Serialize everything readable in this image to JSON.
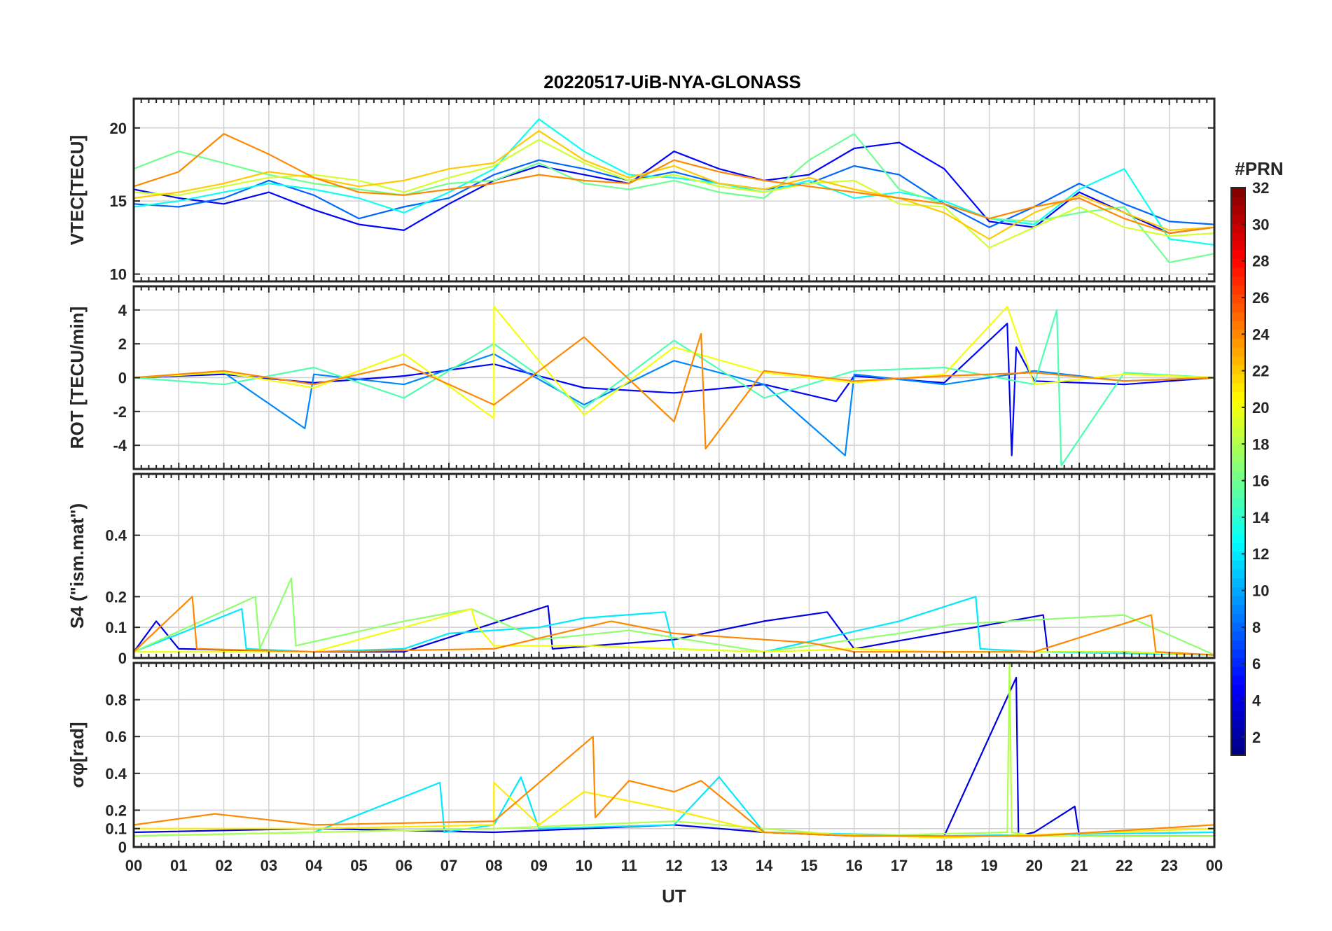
{
  "title": "20220517-UiB-NYA-GLONASS",
  "colors": {
    "grid": "#d0d0d0",
    "axis": "#262626",
    "background": "#ffffff"
  },
  "chart_data": {
    "type": "line",
    "title": "20220517-UiB-NYA-GLONASS",
    "xlabel": "UT",
    "xlim": [
      0,
      24
    ],
    "x_tick_labels": [
      "00",
      "01",
      "02",
      "03",
      "04",
      "05",
      "06",
      "07",
      "08",
      "09",
      "10",
      "11",
      "12",
      "13",
      "14",
      "15",
      "16",
      "17",
      "18",
      "19",
      "20",
      "21",
      "22",
      "23",
      "00"
    ],
    "grid": true,
    "colorbar": {
      "title": "#PRN",
      "range": [
        1,
        32
      ],
      "tick_labels": [
        "2",
        "4",
        "6",
        "8",
        "10",
        "12",
        "14",
        "16",
        "18",
        "20",
        "22",
        "24",
        "26",
        "28",
        "30",
        "32"
      ],
      "colormap": "jet",
      "placement": "right"
    },
    "panels": [
      {
        "name": "vtec",
        "ylabel": "VTEC[TECU]",
        "ylim": [
          9.5,
          22
        ],
        "y_ticks": [
          10,
          15,
          20
        ],
        "y_tick_labels": [
          "10",
          "15",
          "20"
        ],
        "series": [
          {
            "prn": 5,
            "x": [
              0,
              1,
              2,
              3,
              4,
              5,
              6,
              7,
              8,
              9,
              10,
              11,
              12,
              13,
              14,
              15,
              16,
              17,
              18,
              19,
              20,
              21,
              22,
              23,
              24
            ],
            "y": [
              15.8,
              15.2,
              14.8,
              15.6,
              14.4,
              13.4,
              13.0,
              14.8,
              16.4,
              17.4,
              16.8,
              16.2,
              18.4,
              17.2,
              16.4,
              16.8,
              18.6,
              19.0,
              17.2,
              13.6,
              13.2,
              15.6,
              14.2,
              12.8,
              13.2
            ]
          },
          {
            "prn": 8,
            "x": [
              0,
              1,
              2,
              3,
              4,
              5,
              6,
              7,
              8,
              9,
              10,
              11,
              12,
              13,
              14,
              15,
              16,
              17,
              18,
              19,
              20,
              21,
              22,
              23,
              24
            ],
            "y": [
              14.8,
              14.6,
              15.2,
              16.4,
              15.4,
              13.8,
              14.6,
              15.2,
              16.8,
              17.8,
              17.2,
              16.4,
              17.0,
              16.2,
              15.8,
              16.2,
              17.4,
              16.8,
              14.8,
              13.2,
              14.6,
              16.2,
              14.8,
              13.6,
              13.4
            ]
          },
          {
            "prn": 13,
            "x": [
              0,
              1,
              2,
              3,
              4,
              5,
              6,
              7,
              8,
              9,
              10,
              11,
              12,
              13,
              14,
              15,
              16,
              17,
              18,
              19,
              20,
              21,
              22,
              23,
              24
            ],
            "y": [
              14.6,
              15.0,
              15.6,
              16.2,
              15.8,
              15.2,
              14.2,
              15.6,
              17.2,
              20.6,
              18.4,
              16.8,
              16.6,
              16.2,
              15.6,
              16.4,
              15.2,
              15.6,
              15.0,
              13.8,
              13.4,
              15.8,
              17.2,
              12.4,
              12.0
            ]
          },
          {
            "prn": 16,
            "x": [
              0,
              1,
              2,
              3,
              4,
              5,
              6,
              7,
              8,
              9,
              10,
              11,
              12,
              13,
              14,
              15,
              16,
              17,
              18,
              19,
              20,
              21,
              22,
              23,
              24
            ],
            "y": [
              17.2,
              18.4,
              17.6,
              16.8,
              16.2,
              15.8,
              15.4,
              16.2,
              16.4,
              17.6,
              16.2,
              15.8,
              16.4,
              15.6,
              15.2,
              17.8,
              19.6,
              15.8,
              14.8,
              13.8,
              13.6,
              14.2,
              14.6,
              10.8,
              11.4
            ]
          },
          {
            "prn": 19,
            "x": [
              0,
              1,
              2,
              3,
              4,
              5,
              6,
              7,
              8,
              9,
              10,
              11,
              12,
              13,
              14,
              15,
              16,
              17,
              18,
              19,
              20,
              21,
              22,
              23,
              24
            ],
            "y": [
              15.6,
              15.4,
              16.0,
              16.6,
              16.8,
              16.4,
              15.6,
              16.6,
              17.4,
              19.2,
              17.6,
              16.4,
              16.8,
              16.0,
              15.6,
              16.2,
              16.4,
              14.8,
              14.6,
              11.8,
              13.2,
              14.6,
              13.2,
              12.6,
              12.8
            ]
          },
          {
            "prn": 22,
            "x": [
              0,
              1,
              2,
              3,
              4,
              5,
              6,
              7,
              8,
              9,
              10,
              11,
              12,
              13,
              14,
              15,
              16,
              17,
              18,
              19,
              20,
              21,
              22,
              23,
              24
            ],
            "y": [
              15.2,
              15.6,
              16.2,
              17.0,
              16.6,
              16.0,
              16.4,
              17.2,
              17.6,
              19.8,
              17.8,
              16.6,
              17.4,
              16.2,
              15.8,
              16.6,
              15.8,
              15.2,
              14.2,
              12.4,
              14.2,
              15.4,
              14.2,
              13.0,
              13.2
            ]
          },
          {
            "prn": 24,
            "x": [
              0,
              1,
              2,
              3,
              4,
              5,
              6,
              7,
              8,
              9,
              10,
              11,
              12,
              13,
              14,
              15,
              16,
              17,
              18,
              19,
              20,
              21,
              22,
              23,
              24
            ],
            "y": [
              16.0,
              17.0,
              19.6,
              18.2,
              16.6,
              15.6,
              15.4,
              15.8,
              16.2,
              16.8,
              16.4,
              16.2,
              17.8,
              17.0,
              16.4,
              16.0,
              15.6,
              15.2,
              14.8,
              13.8,
              14.6,
              15.2,
              13.8,
              12.8,
              13.2
            ]
          }
        ]
      },
      {
        "name": "rot",
        "ylabel": "ROT [TECU/min]",
        "ylim": [
          -5.4,
          5.4
        ],
        "y_ticks": [
          -4,
          -2,
          0,
          2,
          4
        ],
        "y_tick_labels": [
          "-4",
          "-2",
          "0",
          "2",
          "4"
        ],
        "series": [
          {
            "prn": 5,
            "x": [
              0,
              2,
              4,
              6,
              8,
              10,
              12,
              14,
              15.6,
              16,
              18,
              19.4,
              19.5,
              19.6,
              20,
              22,
              24
            ],
            "y": [
              0,
              0.2,
              -0.3,
              0.1,
              0.8,
              -0.6,
              -0.9,
              -0.4,
              -1.4,
              0.1,
              -0.3,
              3.2,
              -4.6,
              1.8,
              -0.2,
              -0.4,
              0
            ]
          },
          {
            "prn": 9,
            "x": [
              0,
              2,
              3.8,
              4,
              6,
              8,
              10,
              12,
              14,
              15.8,
              16,
              18,
              20,
              22,
              24
            ],
            "y": [
              0,
              0.3,
              -3.0,
              0.2,
              -0.4,
              1.4,
              -1.6,
              1.0,
              -0.4,
              -4.6,
              0.2,
              -0.4,
              0.4,
              -0.2,
              0
            ]
          },
          {
            "prn": 15,
            "x": [
              0,
              2,
              4,
              6,
              8,
              10,
              12,
              14,
              16,
              18,
              20,
              20.5,
              20.6,
              22,
              24
            ],
            "y": [
              0,
              -0.4,
              0.6,
              -1.2,
              2.0,
              -1.8,
              2.2,
              -1.2,
              0.4,
              0.6,
              -0.4,
              4.0,
              -5.2,
              0.3,
              0
            ]
          },
          {
            "prn": 20,
            "x": [
              0,
              2,
              4,
              6,
              8,
              8.0,
              10,
              12,
              14,
              16,
              18,
              19.4,
              20,
              22,
              24
            ],
            "y": [
              0,
              0.3,
              -0.6,
              1.4,
              -2.4,
              4.2,
              -2.2,
              1.8,
              0.3,
              -0.3,
              0.2,
              4.2,
              -0.4,
              0.2,
              0
            ]
          },
          {
            "prn": 24,
            "x": [
              0,
              2,
              4,
              6,
              8,
              10,
              12,
              12.6,
              12.7,
              14,
              16,
              18,
              20,
              22,
              24
            ],
            "y": [
              0,
              0.4,
              -0.4,
              0.8,
              -1.6,
              2.4,
              -2.6,
              2.6,
              -4.2,
              0.4,
              -0.2,
              0.1,
              0.3,
              -0.2,
              0
            ]
          }
        ]
      },
      {
        "name": "s4",
        "ylabel": "S4 (\"ism.mat\")",
        "ylim": [
          0,
          0.6
        ],
        "y_ticks": [
          0,
          0.1,
          0.2,
          0.4
        ],
        "y_tick_labels": [
          "0",
          "0.1",
          "0.2",
          "0.4"
        ],
        "series": [
          {
            "prn": 4,
            "x": [
              0,
              0.5,
              1,
              4,
              6,
              9.2,
              9.3,
              12,
              14,
              15.4,
              16,
              20.2,
              20.3,
              22,
              24
            ],
            "y": [
              0.02,
              0.12,
              0.03,
              0.02,
              0.02,
              0.17,
              0.03,
              0.06,
              0.12,
              0.15,
              0.03,
              0.14,
              0.02,
              0.02,
              0.01
            ]
          },
          {
            "prn": 12,
            "x": [
              0,
              2.4,
              2.5,
              4,
              6,
              7,
              9,
              10,
              11.8,
              12,
              14,
              17,
              18.7,
              18.8,
              20,
              24
            ],
            "y": [
              0.02,
              0.16,
              0.03,
              0.02,
              0.03,
              0.08,
              0.1,
              0.13,
              0.15,
              0.03,
              0.02,
              0.12,
              0.2,
              0.03,
              0.02,
              0.01
            ]
          },
          {
            "prn": 17,
            "x": [
              0,
              2.7,
              2.8,
              3.5,
              3.6,
              6,
              7.5,
              9,
              11,
              14,
              17,
              18.2,
              22,
              24
            ],
            "y": [
              0.02,
              0.2,
              0.03,
              0.26,
              0.04,
              0.12,
              0.16,
              0.06,
              0.09,
              0.02,
              0.08,
              0.11,
              0.14,
              0.01
            ]
          },
          {
            "prn": 20,
            "x": [
              0,
              4,
              7.5,
              7.6,
              8,
              10,
              12,
              14,
              16,
              18,
              20,
              22,
              24
            ],
            "y": [
              0.02,
              0.02,
              0.16,
              0.11,
              0.04,
              0.04,
              0.03,
              0.02,
              0.03,
              0.02,
              0.02,
              0.02,
              0.01
            ]
          },
          {
            "prn": 24,
            "x": [
              0,
              1.3,
              1.4,
              4,
              8,
              10.6,
              12,
              15,
              16,
              20,
              22.6,
              22.7,
              24
            ],
            "y": [
              0.02,
              0.2,
              0.03,
              0.02,
              0.03,
              0.12,
              0.08,
              0.05,
              0.02,
              0.02,
              0.14,
              0.02,
              0.01
            ]
          }
        ]
      },
      {
        "name": "sigma_phi",
        "ylabel": "σφ[rad]",
        "ylim": [
          0,
          1.0
        ],
        "y_ticks": [
          0,
          0.1,
          0.2,
          0.4,
          0.6,
          0.8
        ],
        "y_tick_labels": [
          "0",
          "0.1",
          "0.2",
          "0.4",
          "0.6",
          "0.8"
        ],
        "series": [
          {
            "prn": 4,
            "x": [
              0,
              4,
              8,
              12,
              14,
              16,
              18,
              19.6,
              19.65,
              20,
              20.9,
              21.0,
              24
            ],
            "y": [
              0.08,
              0.1,
              0.08,
              0.12,
              0.08,
              0.06,
              0.06,
              0.92,
              0.06,
              0.08,
              0.22,
              0.06,
              0.06
            ]
          },
          {
            "prn": 12,
            "x": [
              0,
              4,
              6.8,
              6.9,
              8,
              8.6,
              9,
              12,
              13,
              14,
              18,
              24
            ],
            "y": [
              0.06,
              0.08,
              0.35,
              0.08,
              0.12,
              0.38,
              0.1,
              0.12,
              0.38,
              0.08,
              0.06,
              0.08
            ]
          },
          {
            "prn": 18,
            "x": [
              0,
              4,
              8,
              12,
              16,
              19.4,
              19.45,
              19.5,
              20,
              24
            ],
            "y": [
              0.06,
              0.08,
              0.1,
              0.14,
              0.06,
              0.08,
              1.0,
              0.08,
              0.06,
              0.06
            ]
          },
          {
            "prn": 21,
            "x": [
              0,
              4,
              8,
              8.0,
              9,
              10,
              12,
              14,
              18,
              24
            ],
            "y": [
              0.1,
              0.1,
              0.12,
              0.35,
              0.12,
              0.3,
              0.2,
              0.08,
              0.05,
              0.1
            ]
          },
          {
            "prn": 24,
            "x": [
              0,
              1.8,
              4,
              8,
              10.2,
              10.25,
              11,
              12,
              12.6,
              14,
              16,
              20,
              24
            ],
            "y": [
              0.12,
              0.18,
              0.12,
              0.14,
              0.6,
              0.16,
              0.36,
              0.3,
              0.36,
              0.08,
              0.06,
              0.06,
              0.12
            ]
          }
        ]
      }
    ]
  }
}
